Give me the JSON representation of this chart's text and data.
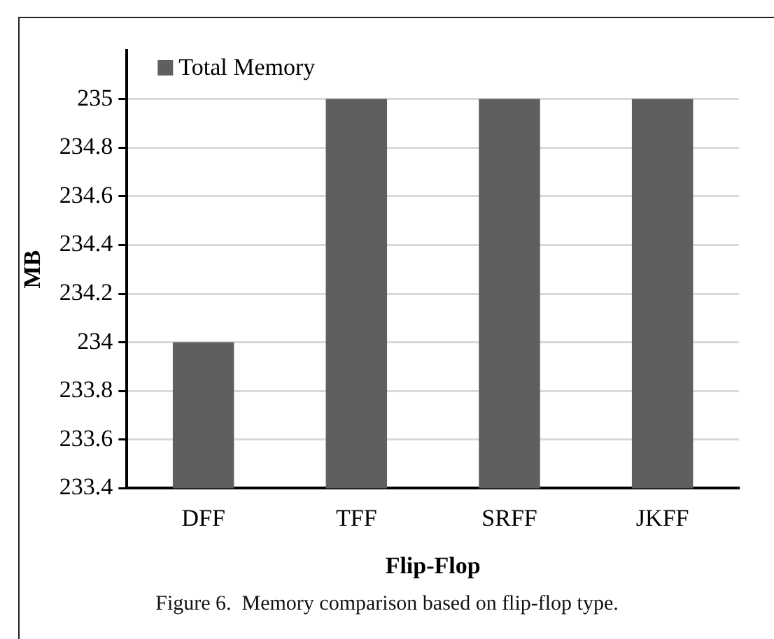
{
  "chart_data": {
    "type": "bar",
    "categories": [
      "DFF",
      "TFF",
      "SRFF",
      "JKFF"
    ],
    "series": [
      {
        "name": "Total Memory",
        "color": "#5f5f5f",
        "values": [
          234,
          235,
          235,
          235
        ]
      }
    ],
    "xlabel": "Flip-Flop",
    "ylabel": "MB",
    "ylim": [
      233.4,
      235.2
    ],
    "yticks": [
      233.4,
      233.6,
      233.8,
      234,
      234.2,
      234.4,
      234.6,
      234.8,
      235
    ],
    "grid": "y",
    "legend": "top left",
    "annotations": [
      "Figure 6.  Memory comparison based on flip-flop type."
    ]
  }
}
